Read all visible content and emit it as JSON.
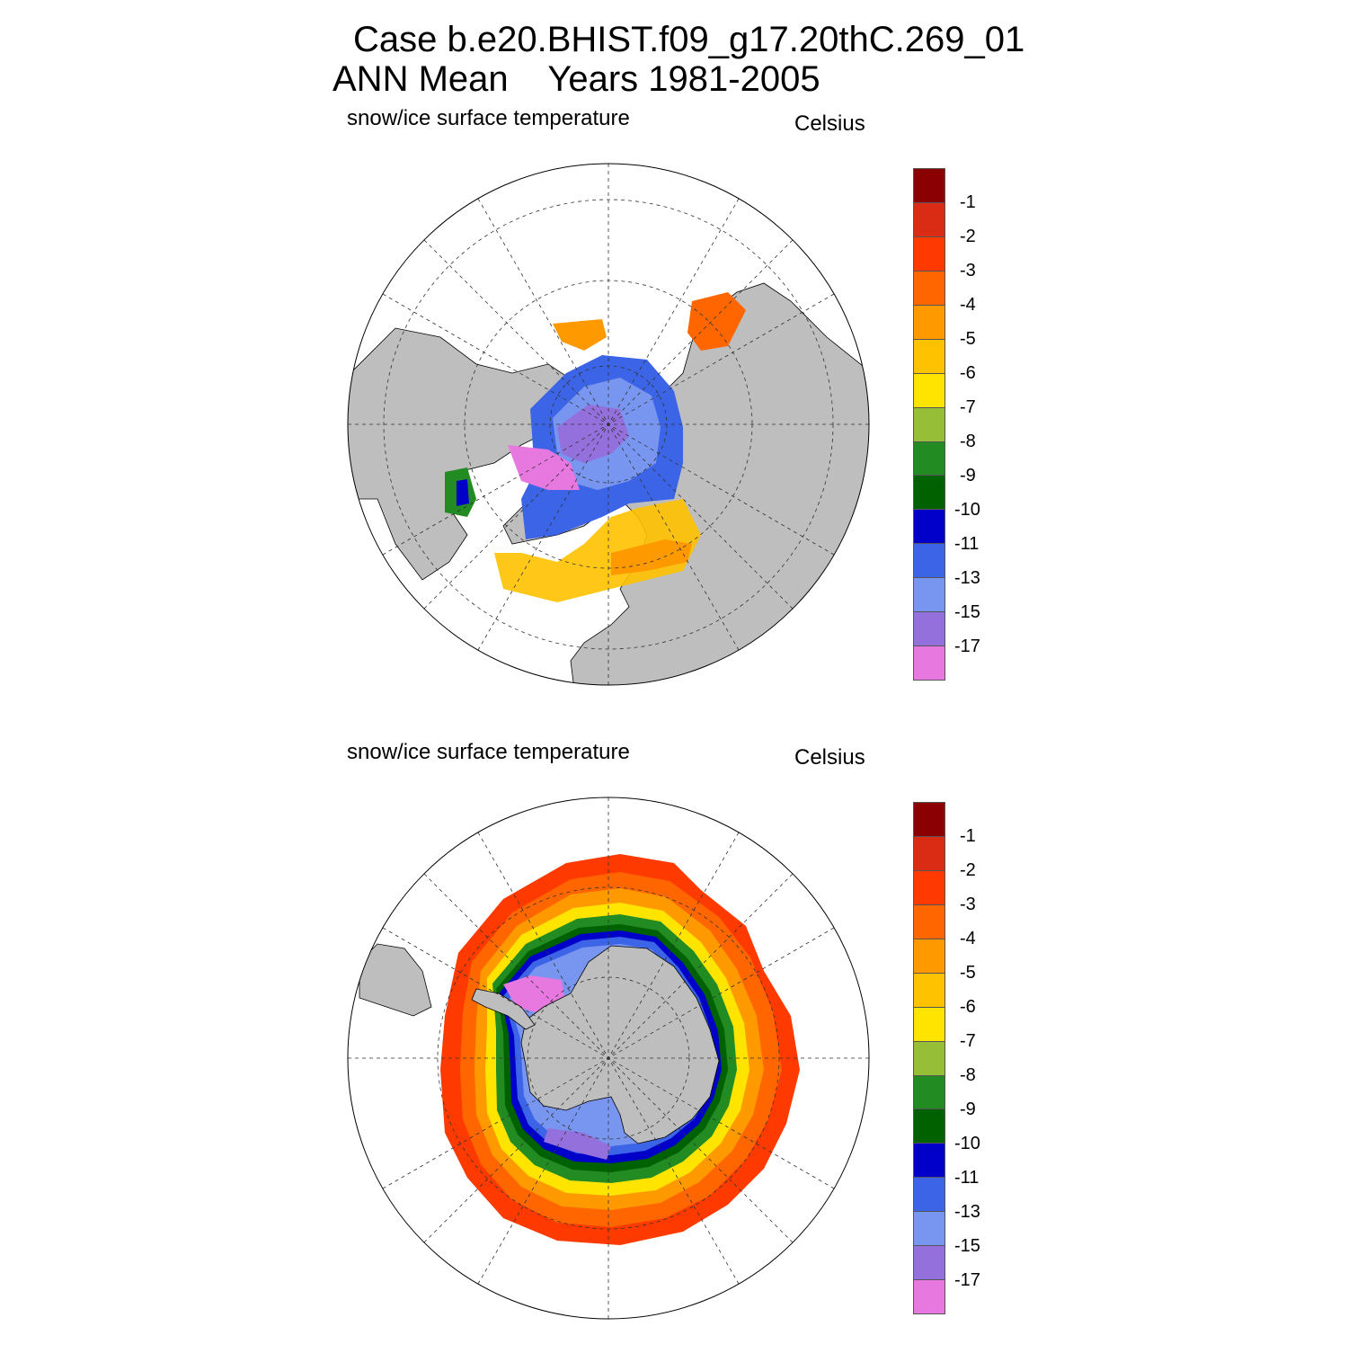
{
  "title": {
    "line1": "Case b.e20.BHIST.f09_g17.20thC.269_01",
    "line2": "ANN Mean    Years 1981-2005"
  },
  "panels": [
    {
      "hemisphere": "north",
      "variable_label": "snow/ice surface temperature",
      "units_label": "Celsius"
    },
    {
      "hemisphere": "south",
      "variable_label": "snow/ice surface temperature",
      "units_label": "Celsius"
    }
  ],
  "colorbar": {
    "labels": [
      "-1",
      "-2",
      "-3",
      "-4",
      "-5",
      "-6",
      "-7",
      "-8",
      "-9",
      "-10",
      "-11",
      "-13",
      "-15",
      "-17"
    ],
    "colors": [
      "#8b0000",
      "#da2c14",
      "#ff3a00",
      "#ff6600",
      "#ff9900",
      "#ffc200",
      "#ffe400",
      "#96be36",
      "#228b22",
      "#006100",
      "#0000c8",
      "#3c64e6",
      "#7896f0",
      "#9370db",
      "#e678e0"
    ]
  },
  "map_colors": {
    "land": "#bebebe",
    "coast": "#000000",
    "grid": "#333333"
  }
}
